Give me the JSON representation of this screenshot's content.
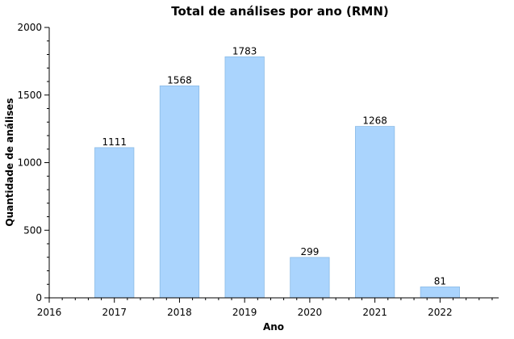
{
  "chart_data": {
    "type": "bar",
    "title": "Total de análises por ano (RMN)",
    "xlabel": "Ano",
    "ylabel": "Quantidade de análises",
    "categories": [
      "2017",
      "2018",
      "2019",
      "2020",
      "2021",
      "2022"
    ],
    "x": [
      2017,
      2018,
      2019,
      2020,
      2021,
      2022
    ],
    "values": [
      1111,
      1568,
      1783,
      299,
      1268,
      81
    ],
    "xlim": [
      2016,
      2022.9
    ],
    "ylim": [
      0,
      2000
    ],
    "x_ticks": [
      "2016",
      "2017",
      "2018",
      "2019",
      "2020",
      "2021",
      "2022"
    ],
    "y_ticks": [
      "0",
      "500",
      "1000",
      "1500",
      "2000"
    ],
    "grid": false,
    "bar_color": "#aad4fd",
    "bar_edge_color": "#8bbbe6"
  }
}
